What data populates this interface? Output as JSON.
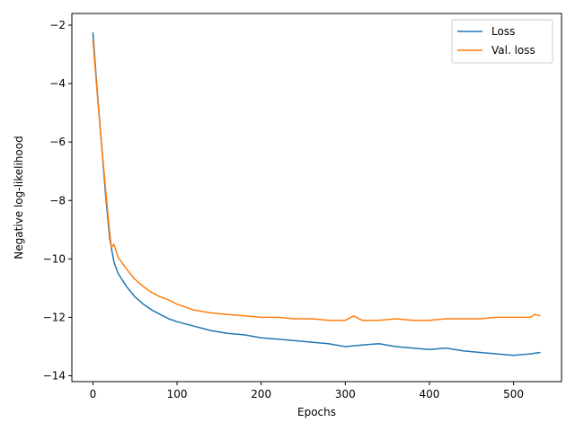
{
  "chart_data": {
    "type": "line",
    "title": "",
    "xlabel": "Epochs",
    "ylabel": "Negative log-likelihood",
    "xlim": [
      -25,
      557
    ],
    "ylim": [
      -14.2,
      -1.6
    ],
    "xticks": [
      0,
      100,
      200,
      300,
      400,
      500
    ],
    "yticks": [
      -14,
      -12,
      -10,
      -8,
      -6,
      -4,
      -2
    ],
    "grid": false,
    "legend": "top-right",
    "series": [
      {
        "name": "Loss",
        "color": "#1f77b4",
        "x": [
          0,
          5,
          10,
          15,
          20,
          25,
          30,
          40,
          50,
          60,
          70,
          80,
          90,
          100,
          120,
          140,
          160,
          180,
          200,
          220,
          240,
          260,
          280,
          300,
          320,
          340,
          360,
          380,
          400,
          420,
          440,
          460,
          480,
          500,
          520,
          532
        ],
        "y": [
          -2.25,
          -4.2,
          -6.0,
          -7.8,
          -9.3,
          -10.1,
          -10.5,
          -10.95,
          -11.3,
          -11.55,
          -11.75,
          -11.9,
          -12.05,
          -12.15,
          -12.3,
          -12.45,
          -12.55,
          -12.6,
          -12.7,
          -12.75,
          -12.8,
          -12.85,
          -12.9,
          -13.0,
          -12.95,
          -12.9,
          -13.0,
          -13.05,
          -13.1,
          -13.05,
          -13.15,
          -13.2,
          -13.25,
          -13.3,
          -13.25,
          -13.2
        ]
      },
      {
        "name": "Val. loss",
        "color": "#ff7f0e",
        "x": [
          0,
          5,
          10,
          15,
          20,
          22,
          25,
          30,
          40,
          50,
          60,
          70,
          80,
          90,
          100,
          120,
          140,
          160,
          180,
          200,
          220,
          240,
          260,
          280,
          300,
          310,
          320,
          340,
          360,
          380,
          400,
          420,
          440,
          460,
          480,
          500,
          520,
          525,
          532
        ],
        "y": [
          -2.5,
          -4.3,
          -6.0,
          -7.6,
          -9.1,
          -9.6,
          -9.5,
          -9.95,
          -10.35,
          -10.7,
          -10.95,
          -11.15,
          -11.3,
          -11.4,
          -11.55,
          -11.75,
          -11.85,
          -11.9,
          -11.95,
          -12.0,
          -12.0,
          -12.05,
          -12.05,
          -12.1,
          -12.1,
          -11.95,
          -12.1,
          -12.1,
          -12.05,
          -12.1,
          -12.1,
          -12.05,
          -12.05,
          -12.05,
          -12.0,
          -12.0,
          -12.0,
          -11.9,
          -11.95
        ]
      }
    ]
  }
}
